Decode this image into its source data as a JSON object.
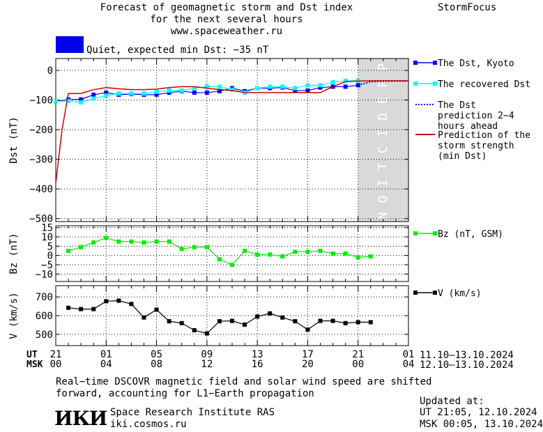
{
  "header": {
    "title_lines": [
      "Forecast of geomagnetic storm and Dst index",
      "for the next several hours",
      "www.spaceweather.ru"
    ],
    "brand": "StormFocus",
    "status_text": "Quiet, expected min Dst: −35 nT",
    "status_color": "#0000ee"
  },
  "time_axis": {
    "ut_label": "UT",
    "msk_label": "MSK",
    "ut_ticks": [
      "21",
      "01",
      "05",
      "09",
      "13",
      "17",
      "21",
      "01"
    ],
    "msk_ticks": [
      "00",
      "04",
      "08",
      "12",
      "16",
      "20",
      "00",
      "04"
    ],
    "ut_range": "11.10–13.10.2024",
    "msk_range": "12.10–13.10.2024"
  },
  "footer": {
    "note_line1": "Real−time DSCOVR magnetic field and solar wind speed are shifted",
    "note_line2": "forward, accounting for L1−Earth propagation",
    "org_logo": "ИКИ",
    "org_name": "Space Research Institute RAS",
    "org_url": "iki.cosmos.ru",
    "updated_label": "Updated at:",
    "updated_ut": "UT   21:05, 12.10.2024",
    "updated_msk": "MSK 00:05, 13.10.2024"
  },
  "chart_data": [
    {
      "type": "line",
      "ylabel": "Dst (nT)",
      "ylim": [
        -510,
        40
      ],
      "yticks": [
        0,
        -100,
        -200,
        -300,
        -400,
        -500
      ],
      "xlim": [
        0,
        28
      ],
      "prediction_label": "PREDICTION",
      "prediction_start": 24,
      "series": [
        {
          "name": "The Dst, Kyoto",
          "color": "#0000ff",
          "marker": "square",
          "x": [
            0,
            1,
            2,
            3,
            4,
            5,
            6,
            7,
            8,
            9,
            10,
            11,
            12,
            13,
            14,
            15,
            16,
            17,
            18,
            19,
            20,
            21,
            22,
            23,
            24
          ],
          "y": [
            -105,
            -98,
            -98,
            -82,
            -75,
            -82,
            -80,
            -82,
            -82,
            -75,
            -70,
            -75,
            -75,
            -70,
            -60,
            -70,
            -60,
            -60,
            -58,
            -68,
            -68,
            -58,
            -55,
            -55,
            -50
          ]
        },
        {
          "name": "The recovered Dst",
          "color": "#00ffff",
          "marker": "square",
          "x": [
            0,
            1,
            2,
            3,
            4,
            5,
            6,
            7,
            8,
            9,
            10,
            11,
            12,
            13,
            14,
            15,
            16,
            17,
            18,
            19,
            20,
            21,
            22,
            23,
            24
          ],
          "y": [
            -105,
            -103,
            -108,
            -95,
            -85,
            -78,
            -78,
            -78,
            -72,
            -68,
            -68,
            -60,
            -55,
            -55,
            -65,
            -75,
            -60,
            -55,
            -55,
            -60,
            -50,
            -50,
            -40,
            -35,
            -35
          ]
        },
        {
          "name": "The Dst prediction 2−4 hours ahead",
          "color": "#0000ff",
          "style": "dotted",
          "x": [
            24,
            25,
            26,
            27,
            28
          ],
          "y": [
            -50,
            -38,
            -37,
            -36,
            -36
          ]
        },
        {
          "name": "Prediction of the storm strength (min Dst)",
          "color": "#cc0000",
          "style": "line",
          "x": [
            0,
            0.5,
            1,
            2,
            3,
            4,
            5,
            6,
            7,
            8,
            9,
            10,
            11,
            12,
            13,
            14,
            15,
            16,
            17,
            18,
            19,
            20,
            21,
            22,
            23,
            24,
            25,
            26,
            27,
            28
          ],
          "y": [
            -380,
            -200,
            -78,
            -78,
            -65,
            -58,
            -62,
            -65,
            -65,
            -63,
            -58,
            -55,
            -55,
            -60,
            -65,
            -68,
            -75,
            -75,
            -75,
            -75,
            -75,
            -75,
            -75,
            -55,
            -38,
            -36,
            -35,
            -35,
            -35,
            -35
          ]
        }
      ]
    },
    {
      "type": "line",
      "ylabel": "Bz (nT)",
      "ylim": [
        -14,
        16
      ],
      "yticks": [
        15,
        10,
        5,
        0,
        -5,
        -10
      ],
      "xlim": [
        0,
        28
      ],
      "series": [
        {
          "name": "Bz (nT, GSM)",
          "color": "#00ee00",
          "marker": "square",
          "x": [
            1,
            2,
            3,
            4,
            5,
            6,
            7,
            8,
            9,
            10,
            11,
            12,
            13,
            14,
            15,
            16,
            17,
            18,
            19,
            20,
            21,
            22,
            23,
            24,
            25
          ],
          "y": [
            2.5,
            4.5,
            7,
            9.5,
            7.5,
            7.5,
            7,
            7.5,
            7.5,
            3.5,
            4.5,
            4.5,
            -2,
            -5,
            2.5,
            0.5,
            0.5,
            -0.5,
            2,
            2,
            2.5,
            1,
            1,
            -1,
            -0.5
          ]
        }
      ]
    },
    {
      "type": "line",
      "ylabel": "V (km/s)",
      "ylim": [
        440,
        760
      ],
      "yticks": [
        700,
        600,
        500
      ],
      "xlim": [
        0,
        28
      ],
      "series": [
        {
          "name": "V (km/s)",
          "color": "#000000",
          "marker": "square",
          "x": [
            1,
            2,
            3,
            4,
            5,
            6,
            7,
            8,
            9,
            10,
            11,
            12,
            13,
            14,
            15,
            16,
            17,
            18,
            19,
            20,
            21,
            22,
            23,
            24,
            25
          ],
          "y": [
            642,
            635,
            635,
            677,
            680,
            662,
            590,
            632,
            570,
            560,
            522,
            505,
            570,
            572,
            552,
            595,
            612,
            590,
            570,
            525,
            572,
            572,
            560,
            565,
            565
          ]
        }
      ]
    }
  ]
}
